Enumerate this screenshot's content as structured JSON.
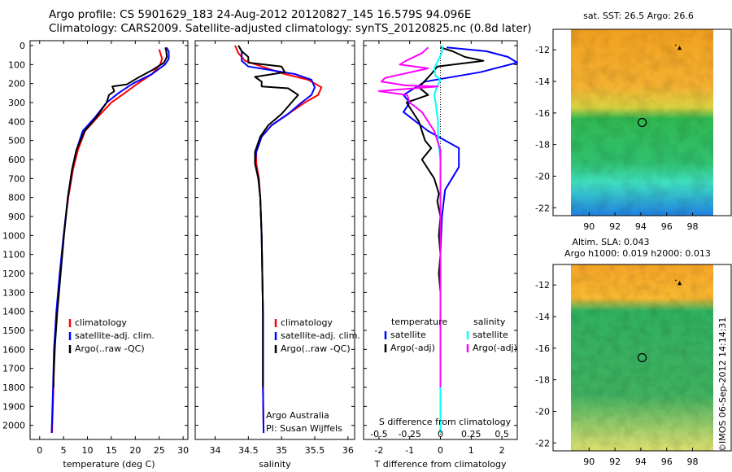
{
  "header": {
    "line1": "Argo profile: CS 5901629_183 24-Aug-2012 20120827_145 16.579S 94.096E",
    "line2": "Climatology: CARS2009. Satellite-adjusted climatology: synTS_20120825.nc (0.8d later)"
  },
  "colors": {
    "climatology": "#ff0000",
    "satellite": "#0000ff",
    "argo": "#000000",
    "satellite_diff": "#00ffff",
    "argo_diff": "#ff00ff"
  },
  "chart_data": [
    {
      "type": "line",
      "panel": "temperature",
      "xlabel": "temperature (deg C)",
      "ylabel": "",
      "xlim": [
        -2,
        31
      ],
      "ylim": [
        2070,
        0
      ],
      "xticks": [
        0,
        5,
        10,
        15,
        20,
        25,
        30
      ],
      "yticks": [
        0,
        100,
        200,
        300,
        400,
        500,
        600,
        700,
        800,
        900,
        1000,
        1100,
        1200,
        1300,
        1400,
        1500,
        1600,
        1700,
        1800,
        1900,
        2000
      ],
      "legend": [
        "climatology",
        "satellite-adj. clim.",
        "Argo(..raw -QC)"
      ],
      "series": [
        {
          "name": "climatology",
          "color": "red",
          "points": [
            [
              25,
              20
            ],
            [
              25.3,
              45
            ],
            [
              25.6,
              70
            ],
            [
              25.2,
              100
            ],
            [
              23.5,
              150
            ],
            [
              20.5,
              200
            ],
            [
              17.8,
              250
            ],
            [
              15,
              300
            ],
            [
              12,
              380
            ],
            [
              9.5,
              450
            ],
            [
              8,
              550
            ],
            [
              7,
              650
            ],
            [
              6,
              800
            ],
            [
              5,
              1000
            ],
            [
              4.3,
              1200
            ],
            [
              3.6,
              1400
            ],
            [
              3.1,
              1600
            ],
            [
              2.9,
              1800
            ],
            [
              2.6,
              2040
            ]
          ]
        },
        {
          "name": "satellite-adj. clim.",
          "color": "blue",
          "points": [
            [
              26.5,
              10
            ],
            [
              27,
              30
            ],
            [
              27,
              70
            ],
            [
              26.2,
              100
            ],
            [
              23.5,
              150
            ],
            [
              19.5,
              200
            ],
            [
              16.5,
              250
            ],
            [
              14,
              300
            ],
            [
              11.5,
              380
            ],
            [
              9,
              450
            ],
            [
              7.7,
              550
            ],
            [
              6.8,
              650
            ],
            [
              5.9,
              800
            ],
            [
              5,
              1000
            ],
            [
              4.2,
              1200
            ],
            [
              3.5,
              1400
            ],
            [
              3,
              1600
            ],
            [
              2.8,
              1800
            ],
            [
              2.5,
              2040
            ]
          ]
        },
        {
          "name": "Argo(..raw -QC)",
          "color": "black",
          "points": [
            [
              26.3,
              10
            ],
            [
              26.5,
              30
            ],
            [
              26.6,
              60
            ],
            [
              26,
              90
            ],
            [
              23.5,
              130
            ],
            [
              20.5,
              170
            ],
            [
              18.2,
              205
            ],
            [
              15.2,
              215
            ],
            [
              15.6,
              240
            ],
            [
              14.5,
              260
            ],
            [
              14,
              300
            ],
            [
              11.8,
              380
            ],
            [
              9.4,
              450
            ],
            [
              7.7,
              550
            ],
            [
              6.8,
              650
            ],
            [
              5.9,
              800
            ],
            [
              5.1,
              1000
            ],
            [
              4.4,
              1200
            ],
            [
              3.7,
              1400
            ],
            [
              3.2,
              1580
            ],
            [
              2.9,
              1750
            ],
            [
              2.9,
              1800
            ]
          ]
        }
      ]
    },
    {
      "type": "line",
      "panel": "salinity",
      "xlabel": "salinity",
      "ylabel": "",
      "xlim": [
        33.7,
        36.1
      ],
      "ylim": [
        2070,
        0
      ],
      "xticks": [
        34,
        34.5,
        35,
        35.5,
        36
      ],
      "legend": [
        "climatology",
        "satellite-adj. clim.",
        "Argo(..raw -QC)"
      ],
      "annotations": [
        "Argo Australia",
        "PI: Susan Wijffels"
      ],
      "series": [
        {
          "name": "climatology",
          "color": "red",
          "points": [
            [
              34.3,
              0
            ],
            [
              34.35,
              40
            ],
            [
              34.45,
              80
            ],
            [
              34.7,
              110
            ],
            [
              35.05,
              150
            ],
            [
              35.4,
              180
            ],
            [
              35.6,
              220
            ],
            [
              35.55,
              260
            ],
            [
              35.35,
              300
            ],
            [
              35.1,
              360
            ],
            [
              34.85,
              420
            ],
            [
              34.7,
              480
            ],
            [
              34.62,
              560
            ],
            [
              34.62,
              620
            ],
            [
              34.66,
              700
            ],
            [
              34.68,
              800
            ],
            [
              34.7,
              1000
            ],
            [
              34.71,
              1200
            ],
            [
              34.72,
              1400
            ],
            [
              34.72,
              1600
            ],
            [
              34.72,
              1800
            ],
            [
              34.73,
              2040
            ]
          ]
        },
        {
          "name": "satellite-adj. clim.",
          "color": "blue",
          "points": [
            [
              34.35,
              0
            ],
            [
              34.4,
              30
            ],
            [
              34.4,
              80
            ],
            [
              34.5,
              110
            ],
            [
              35.2,
              150
            ],
            [
              35.45,
              180
            ],
            [
              35.5,
              220
            ],
            [
              35.45,
              260
            ],
            [
              35.3,
              300
            ],
            [
              35.1,
              360
            ],
            [
              34.85,
              420
            ],
            [
              34.7,
              480
            ],
            [
              34.62,
              560
            ],
            [
              34.6,
              620
            ],
            [
              34.65,
              700
            ],
            [
              34.68,
              800
            ],
            [
              34.7,
              1000
            ],
            [
              34.71,
              1200
            ],
            [
              34.72,
              1400
            ],
            [
              34.72,
              1600
            ],
            [
              34.72,
              1800
            ],
            [
              34.73,
              2040
            ]
          ]
        },
        {
          "name": "Argo(..raw -QC)",
          "color": "black",
          "points": [
            [
              34.35,
              0
            ],
            [
              34.4,
              30
            ],
            [
              34.5,
              60
            ],
            [
              34.5,
              90
            ],
            [
              35.0,
              110
            ],
            [
              35.05,
              140
            ],
            [
              34.6,
              165
            ],
            [
              34.7,
              190
            ],
            [
              34.7,
              215
            ],
            [
              35.1,
              225
            ],
            [
              35.25,
              260
            ],
            [
              35.15,
              300
            ],
            [
              35.0,
              360
            ],
            [
              34.8,
              420
            ],
            [
              34.68,
              480
            ],
            [
              34.6,
              560
            ],
            [
              34.6,
              620
            ],
            [
              34.65,
              700
            ],
            [
              34.68,
              800
            ],
            [
              34.7,
              1000
            ],
            [
              34.71,
              1200
            ],
            [
              34.72,
              1400
            ],
            [
              34.72,
              1600
            ],
            [
              34.72,
              1800
            ]
          ]
        }
      ]
    },
    {
      "type": "line",
      "panel": "difference",
      "xlabel": "T difference from climatology",
      "top_label": "S difference from climatology",
      "xlim": [
        -2.5,
        2.5
      ],
      "ylim": [
        2070,
        0
      ],
      "xticks": [
        -2,
        -1,
        0,
        1,
        2
      ],
      "top_ticks": [
        "-0.5",
        "-0.25",
        "0",
        "0.25",
        "0.5"
      ],
      "legend_titles": [
        "temperature",
        "salinity"
      ],
      "legend": [
        "satellite",
        "Argo(-adj)",
        "satellite",
        "Argo(-adj)"
      ],
      "series": [
        {
          "name": "temperature satellite",
          "color": "blue",
          "points": [
            [
              0.2,
              10
            ],
            [
              1.5,
              30
            ],
            [
              2.2,
              60
            ],
            [
              2.5,
              90
            ],
            [
              1.3,
              140
            ],
            [
              -0.5,
              190
            ],
            [
              -1.2,
              260
            ],
            [
              -1,
              300
            ],
            [
              -1.2,
              350
            ],
            [
              -0.4,
              450
            ],
            [
              0.6,
              540
            ],
            [
              0.6,
              640
            ],
            [
              0.15,
              760
            ],
            [
              0.05,
              900
            ],
            [
              0,
              1100
            ],
            [
              0,
              1300
            ],
            [
              0,
              1500
            ],
            [
              0,
              1700
            ],
            [
              0,
              2040
            ]
          ]
        },
        {
          "name": "temperature Argo(-adj)",
          "color": "black",
          "points": [
            [
              0,
              10
            ],
            [
              0.4,
              30
            ],
            [
              0.8,
              60
            ],
            [
              1.4,
              80
            ],
            [
              -0.1,
              110
            ],
            [
              -0.3,
              150
            ],
            [
              -0.7,
              220
            ],
            [
              -0.4,
              260
            ],
            [
              -1.1,
              300
            ],
            [
              -0.7,
              400
            ],
            [
              -0.5,
              500
            ],
            [
              -0.3,
              540
            ],
            [
              -0.6,
              600
            ],
            [
              -0.2,
              700
            ],
            [
              -0.05,
              780
            ],
            [
              -0.1,
              820
            ],
            [
              0,
              900
            ],
            [
              -0.05,
              1000
            ],
            [
              0,
              1100
            ],
            [
              -0.05,
              1200
            ],
            [
              0,
              1300
            ],
            [
              0,
              1400
            ],
            [
              0,
              1500
            ],
            [
              0,
              1600
            ],
            [
              0,
              1800
            ]
          ]
        },
        {
          "name": "salinity satellite",
          "color": "cyan",
          "points": [
            [
              0.02,
              0
            ],
            [
              0.01,
              40
            ],
            [
              -0.02,
              80
            ],
            [
              -0.05,
              120
            ],
            [
              -0.04,
              160
            ],
            [
              0.0,
              180
            ],
            [
              -0.03,
              220
            ],
            [
              -0.05,
              260
            ],
            [
              -0.04,
              300
            ],
            [
              -0.02,
              400
            ],
            [
              -0.02,
              500
            ],
            [
              0,
              600
            ],
            [
              0,
              700
            ],
            [
              0,
              1000
            ],
            [
              0,
              1300
            ],
            [
              0,
              1600
            ],
            [
              0,
              2040
            ]
          ]
        },
        {
          "name": "salinity Argo(-adj)",
          "color": "magenta",
          "points": [
            [
              -0.1,
              10
            ],
            [
              -0.15,
              40
            ],
            [
              -0.28,
              80
            ],
            [
              -0.33,
              100
            ],
            [
              -0.1,
              120
            ],
            [
              -0.45,
              170
            ],
            [
              -0.48,
              190
            ],
            [
              -0.28,
              210
            ],
            [
              -0.02,
              215
            ],
            [
              -0.5,
              240
            ],
            [
              -0.27,
              260
            ],
            [
              -0.25,
              300
            ],
            [
              -0.15,
              350
            ],
            [
              -0.05,
              450
            ],
            [
              0,
              550
            ],
            [
              0,
              650
            ],
            [
              0,
              800
            ],
            [
              0,
              1000
            ],
            [
              0,
              1200
            ],
            [
              0,
              1400
            ],
            [
              0,
              1600
            ],
            [
              0,
              1800
            ]
          ]
        }
      ]
    },
    {
      "type": "heatmap",
      "panel": "map-sst",
      "title": "sat. SST: 26.5  Argo: 26.6",
      "xticks": [
        90,
        92,
        94,
        96,
        98
      ],
      "yticks": [
        -12,
        -14,
        -16,
        -18,
        -20,
        -22
      ],
      "xlim": [
        88.6,
        99.6
      ],
      "ylim": [
        -22.5,
        -10.7
      ],
      "marker_float": [
        94.1,
        -16.6
      ],
      "marker_triangle": [
        97.0,
        -11.9
      ],
      "marker_dot": [
        96.7,
        -11.7
      ]
    },
    {
      "type": "heatmap",
      "panel": "map-sla",
      "title": "Altim. SLA: 0.043",
      "subtitle": "Argo h1000: 0.019 h2000: 0.013",
      "xticks": [
        90,
        92,
        94,
        96,
        98
      ],
      "yticks": [
        -12,
        -14,
        -16,
        -18,
        -20,
        -22
      ],
      "xlim": [
        88.6,
        99.6
      ],
      "ylim": [
        -22.5,
        -10.7
      ],
      "marker_float": [
        94.1,
        -16.6
      ],
      "marker_triangle": [
        97.0,
        -11.9
      ],
      "marker_dot": [
        96.7,
        -11.7
      ]
    }
  ],
  "footer": {
    "credit": "©IMOS 06-Sep-2012 14:14:31"
  }
}
